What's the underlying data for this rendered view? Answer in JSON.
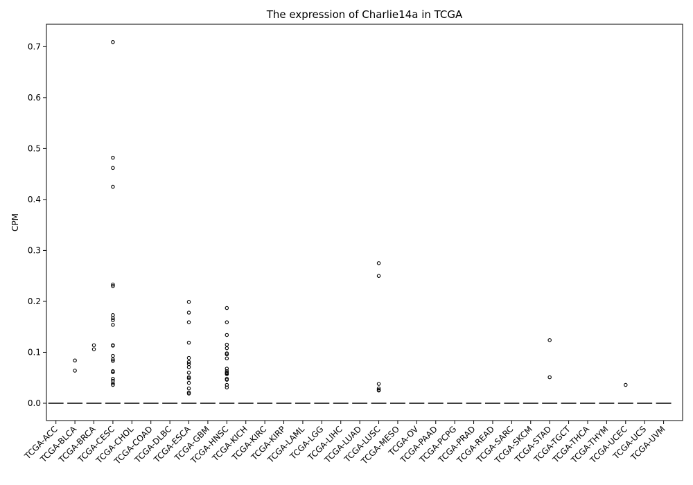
{
  "chart_data": {
    "type": "box",
    "title": "The expression of Charlie14a in TCGA",
    "xlabel": "",
    "ylabel": "CPM",
    "ylim": [
      -0.034,
      0.744
    ],
    "yticks": [
      0.0,
      0.1,
      0.2,
      0.3,
      0.4,
      0.5,
      0.6,
      0.7
    ],
    "ytick_labels": [
      "0.0",
      "0.1",
      "0.2",
      "0.3",
      "0.4",
      "0.5",
      "0.6",
      "0.7"
    ],
    "grid": false,
    "categories": [
      "TCGA-ACC",
      "TCGA-BLCA",
      "TCGA-BRCA",
      "TCGA-CESC",
      "TCGA-CHOL",
      "TCGA-COAD",
      "TCGA-DLBC",
      "TCGA-ESCA",
      "TCGA-GBM",
      "TCGA-HNSC",
      "TCGA-KICH",
      "TCGA-KIRC",
      "TCGA-KIRP",
      "TCGA-LAML",
      "TCGA-LGG",
      "TCGA-LIHC",
      "TCGA-LUAD",
      "TCGA-LUSC",
      "TCGA-MESO",
      "TCGA-OV",
      "TCGA-PAAD",
      "TCGA-PCPG",
      "TCGA-PRAD",
      "TCGA-READ",
      "TCGA-SARC",
      "TCGA-SKCM",
      "TCGA-STAD",
      "TCGA-TGCT",
      "TCGA-THCA",
      "TCGA-THYM",
      "TCGA-UCEC",
      "TCGA-UCS",
      "TCGA-UVM"
    ],
    "median": 0.0,
    "outliers": {
      "TCGA-BLCA": [
        0.084,
        0.064
      ],
      "TCGA-BRCA": [
        0.114,
        0.106
      ],
      "TCGA-CESC": [
        0.709,
        0.482,
        0.462,
        0.425,
        0.233,
        0.23,
        0.173,
        0.167,
        0.163,
        0.154,
        0.114,
        0.113,
        0.093,
        0.086,
        0.083,
        0.063,
        0.061,
        0.048,
        0.044,
        0.039,
        0.036
      ],
      "TCGA-ESCA": [
        0.199,
        0.178,
        0.159,
        0.119,
        0.089,
        0.081,
        0.077,
        0.071,
        0.06,
        0.051,
        0.049,
        0.04,
        0.029,
        0.021,
        0.019
      ],
      "TCGA-HNSC": [
        0.187,
        0.159,
        0.134,
        0.115,
        0.108,
        0.098,
        0.096,
        0.088,
        0.068,
        0.063,
        0.06,
        0.059,
        0.057,
        0.048,
        0.046,
        0.036,
        0.031
      ],
      "TCGA-LUSC": [
        0.275,
        0.25,
        0.038,
        0.029,
        0.026,
        0.025
      ],
      "TCGA-STAD": [
        0.124,
        0.051
      ],
      "TCGA-UCEC": [
        0.036
      ]
    }
  }
}
